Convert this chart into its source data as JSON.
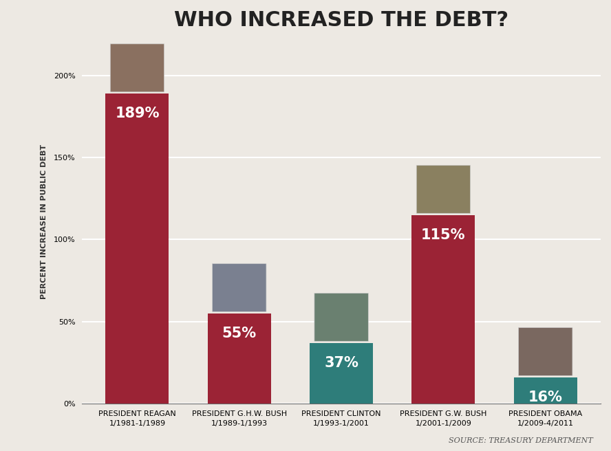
{
  "title": "WHO INCREASED THE DEBT?",
  "ylabel": "PERCENT INCREASE IN PUBLIC DEBT",
  "source": "SOURCE: TREASURY DEPARTMENT",
  "categories": [
    "PRESIDENT REAGAN\n1/1981-1/1989",
    "PRESIDENT G.H.W. BUSH\n1/1989-1/1993",
    "PRESIDENT CLINTON\n1/1993-1/2001",
    "PRESIDENT G.W. BUSH\n1/2001-1/2009",
    "PRESIDENT OBAMA\n1/2009-4/2011"
  ],
  "values": [
    189,
    55,
    37,
    115,
    16
  ],
  "bar_colors": [
    "#9b2335",
    "#9b2335",
    "#2e7d7a",
    "#9b2335",
    "#2e7d7a"
  ],
  "value_labels": [
    "189%",
    "55%",
    "37%",
    "115%",
    "16%"
  ],
  "ylim": [
    0,
    222
  ],
  "yticks": [
    0,
    50,
    100,
    150,
    200
  ],
  "ytick_labels": [
    "0%",
    "50%",
    "100%",
    "150%",
    "200%"
  ],
  "background_color": "#ede9e3",
  "plot_bg_color": "#ede9e3",
  "bar_value_color": "#ffffff",
  "title_fontsize": 22,
  "ylabel_fontsize": 8,
  "tick_label_fontsize": 8,
  "value_label_fontsize": 15,
  "source_fontsize": 8,
  "grid_color": "#ffffff",
  "grid_linewidth": 1.5
}
